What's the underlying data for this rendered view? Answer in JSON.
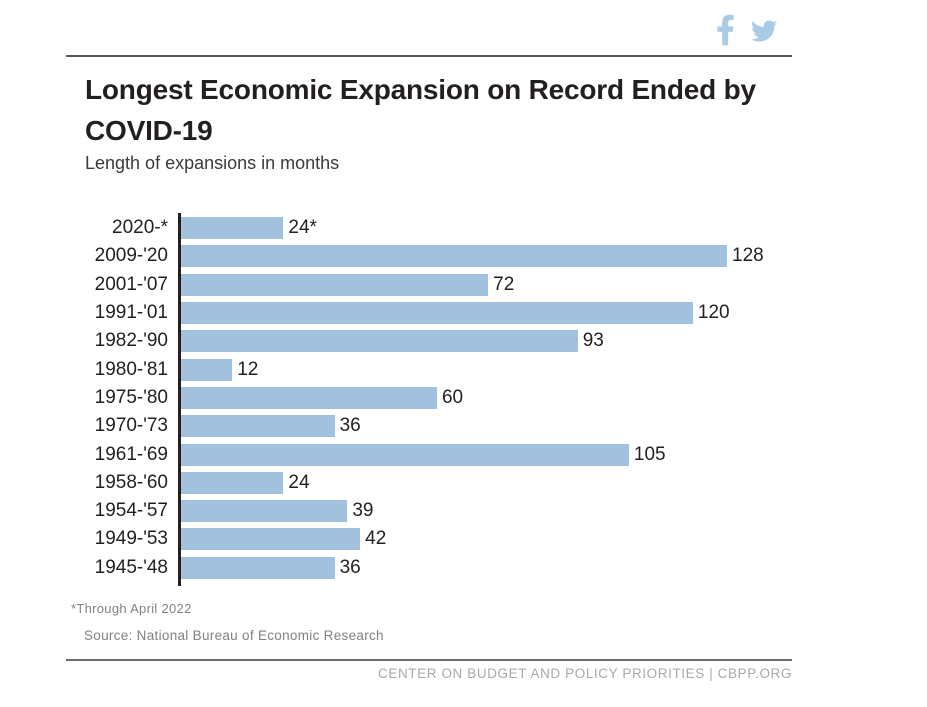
{
  "title": "Longest Economic Expansion on Record Ended by COVID-19",
  "subtitle": "Length of expansions in months",
  "social": {
    "facebook_label": "share-on-facebook",
    "twitter_label": "share-on-twitter",
    "icon_color": "#a9cbe5"
  },
  "chart_data": {
    "type": "bar",
    "orientation": "horizontal",
    "categories": [
      "2020-*",
      "2009-'20",
      "2001-'07",
      "1991-'01",
      "1982-'90",
      "1980-'81",
      "1975-'80",
      "1970-'73",
      "1961-'69",
      "1958-'60",
      "1954-'57",
      "1949-'53",
      "1945-'48"
    ],
    "values": [
      24,
      128,
      72,
      120,
      93,
      12,
      60,
      36,
      105,
      24,
      39,
      42,
      36
    ],
    "value_labels": [
      "24*",
      "128",
      "72",
      "120",
      "93",
      "12",
      "60",
      "36",
      "105",
      "24",
      "39",
      "42",
      "36"
    ],
    "title": "Longest Economic Expansion on Record Ended by COVID-19",
    "xlabel": "",
    "ylabel": "",
    "xlim": [
      0,
      128
    ],
    "grid": false,
    "legend": "none",
    "bar_color": "#a2c1dd",
    "axis_color": "#231f20"
  },
  "footnote": "*Through April 2022",
  "source": "Source: National Bureau of Economic Research",
  "footer": "CENTER ON BUDGET AND POLICY PRIORITIES | CBPP.ORG"
}
